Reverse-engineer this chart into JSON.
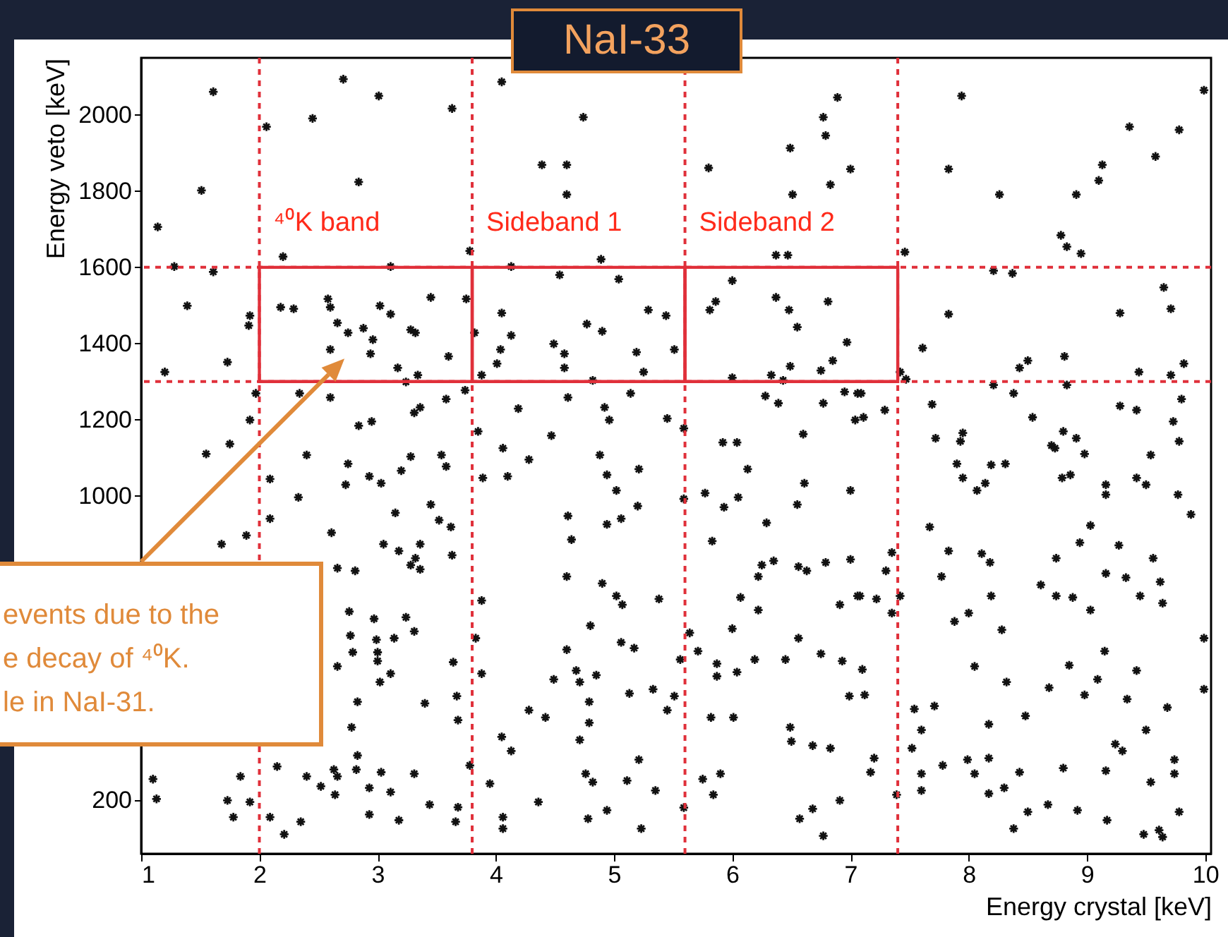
{
  "chart_data": {
    "type": "scatter",
    "title": "NaI-33",
    "xlabel": "Energy crystal [keV]",
    "ylabel": "Energy veto [keV]",
    "xlim": [
      1,
      10.05
    ],
    "ylim": [
      60,
      2150
    ],
    "xticks": [
      1,
      2,
      3,
      4,
      5,
      6,
      7,
      8,
      9,
      10
    ],
    "yticks": [
      200,
      1000,
      1200,
      1400,
      1600,
      1800,
      2000
    ],
    "marker": "cross",
    "ref_lines": [
      {
        "axis": "x",
        "value": 2,
        "color": "#e0303a",
        "line_style": "dashed"
      },
      {
        "axis": "x",
        "value": 3.8,
        "color": "#e0303a",
        "line_style": "dashed"
      },
      {
        "axis": "x",
        "value": 5.6,
        "color": "#e0303a",
        "line_style": "dashed"
      },
      {
        "axis": "x",
        "value": 7.4,
        "color": "#e0303a",
        "line_style": "dashed"
      },
      {
        "axis": "y",
        "value": 1300,
        "color": "#e0303a",
        "line_style": "dashed"
      },
      {
        "axis": "y",
        "value": 1600,
        "color": "#e0303a",
        "line_style": "dashed"
      }
    ],
    "annotations": [
      "⁴⁰K band",
      "Sideband 1",
      "Sideband 2",
      "events due to the\ne decay of ⁴⁰K.\nle in NaI-31."
    ],
    "series": [
      {
        "color": "#111111",
        "x": [
          1.61,
          2.71,
          3.01,
          3.63,
          2.45,
          2.06,
          1.51,
          2.84,
          1.14,
          2.2,
          3.78,
          1.28,
          1.61,
          3.11,
          1.39,
          1.92,
          1.91,
          2.18,
          2.29,
          2.58,
          2.6,
          2.66,
          2.75,
          2.88,
          2.96,
          2.94,
          3.02,
          3.11,
          3.28,
          3.32,
          3.45,
          3.75,
          2.6,
          3.6,
          3.17,
          3.24,
          3.34,
          3.82,
          1.73,
          1.2,
          1.97,
          2.6,
          2.34,
          3.36,
          3.31,
          3.58,
          3.74,
          3.88,
          1.92,
          2.84,
          2.95,
          1.75,
          3.85,
          1.55,
          2.4,
          2.09,
          2.75,
          2.73,
          2.93,
          3.03,
          3.2,
          3.28,
          3.54,
          3.58,
          3.89,
          2.33,
          2.09,
          3.45,
          3.15,
          3.52,
          3.62,
          2.61,
          1.89,
          1.68,
          3.05,
          3.18,
          3.36,
          3.32,
          3.28,
          3.36,
          3.63,
          2.66,
          2.81,
          3.88,
          2.76,
          2.97,
          3.24,
          3.31,
          2.77,
          2.99,
          3.0,
          3.14,
          2.79,
          3.0,
          3.11,
          3.02,
          3.64,
          3.83,
          3.88,
          2.66,
          2.83,
          3.4,
          3.67,
          3.68,
          2.78,
          2.83,
          2.15,
          1.84,
          1.1,
          2.4,
          2.52,
          2.63,
          2.66,
          2.64,
          2.82,
          2.93,
          3.03,
          3.11,
          3.31,
          3.78,
          3.95,
          1.13,
          1.73,
          1.92,
          1.78,
          2.09,
          2.21,
          2.35,
          2.93,
          3.18,
          3.44,
          3.68,
          3.66,
          4.05,
          4.74,
          4.39,
          4.6,
          4.6,
          5.8,
          6.49,
          6.77,
          6.89,
          6.79,
          7.0,
          6.83,
          6.51,
          4.13,
          4.89,
          4.54,
          5.04,
          4.05,
          5.29,
          5.44,
          4.77,
          4.9,
          4.13,
          4.04,
          4.01,
          4.49,
          4.58,
          4.58,
          5.19,
          5.51,
          5.25,
          4.82,
          4.61,
          4.19,
          4.92,
          4.96,
          5.14,
          4.47,
          5.45,
          5.59,
          6.37,
          6.47,
          6.0,
          5.86,
          5.81,
          6.37,
          6.48,
          6.55,
          6.81,
          6.97,
          6.85,
          6.75,
          6.49,
          6.33,
          6.43,
          6.0,
          6.28,
          6.39,
          6.77,
          6.95,
          7.06,
          7.04,
          6.6,
          5.92,
          6.04,
          7.94,
          9.99,
          9.36,
          9.78,
          9.58,
          9.13,
          9.1,
          7.83,
          8.26,
          8.91,
          8.78,
          8.83,
          8.95,
          7.46,
          8.21,
          8.37,
          9.65,
          9.28,
          9.71,
          7.83,
          7.61,
          8.43,
          8.5,
          8.81,
          9.44,
          9.82,
          9.71,
          7.42,
          7.47,
          8.21,
          8.83,
          8.38,
          7.69,
          8.54,
          9.28,
          9.42,
          9.8,
          9.73,
          9.78,
          7.72,
          7.95,
          7.93,
          8.8,
          8.7,
          8.91,
          7.29,
          7.09,
          7.11,
          7.9,
          7.95,
          8.07,
          8.14,
          8.19,
          8.31,
          8.73,
          8.98,
          8.79,
          8.86,
          9.16,
          9.16,
          9.42,
          9.5,
          9.54,
          9.77,
          9.88,
          7.67,
          9.03,
          8.94,
          9.27,
          7.83,
          8.11,
          8.18,
          8.74,
          9.56,
          7.35,
          7.3,
          7.77,
          9.16,
          9.33,
          9.62,
          8.61,
          8.74,
          8.88,
          9.03,
          8.19,
          9.45,
          9.64,
          7.08,
          7.22,
          7.42,
          7.35,
          7.88,
          8.0,
          8.28,
          9.99,
          9.15,
          8.05,
          8.85,
          9.42,
          8.32,
          8.68,
          9.09,
          8.98,
          9.34,
          9.99,
          7.1,
          7.12,
          7.54,
          7.71,
          7.6,
          7.52,
          8.17,
          8.48,
          9.68,
          9.5,
          9.24,
          9.3,
          7.2,
          7.17,
          7.6,
          7.6,
          7.78,
          7.99,
          8.05,
          8.17,
          8.17,
          8.3,
          8.43,
          8.8,
          9.16,
          9.54,
          9.74,
          9.74,
          7.39,
          8.67,
          8.92,
          8.5,
          8.38,
          9.17,
          9.78,
          9.48,
          9.61,
          9.64,
          4.06,
          4.28,
          4.1,
          4.88,
          4.94,
          5.02,
          5.21,
          5.2,
          4.61,
          4.64,
          4.94,
          5.06,
          5.59,
          5.77,
          5.93,
          6.05,
          6.13,
          6.29,
          6.55,
          6.61,
          7.0,
          5.83,
          6.25,
          6.35,
          6.22,
          6.56,
          6.63,
          6.79,
          7.0,
          4.6,
          4.9,
          5.02,
          5.07,
          5.38,
          6.07,
          6.22,
          6.91,
          7.06,
          4.8,
          6.0,
          5.64,
          6.56,
          4.6,
          5.06,
          5.17,
          5.56,
          5.71,
          5.87,
          5.87,
          6.04,
          6.19,
          6.45,
          6.75,
          6.93,
          4.68,
          4.71,
          4.49,
          4.85,
          5.13,
          5.33,
          5.51,
          5.45,
          6.99,
          4.79,
          4.28,
          4.42,
          4.79,
          5.82,
          6.01,
          4.05,
          4.13,
          4.71,
          6.49,
          6.5,
          6.68,
          6.83,
          5.21,
          4.76,
          4.82,
          5.11,
          5.35,
          5.75,
          5.9,
          5.84,
          4.36,
          4.94,
          4.78,
          4.06,
          4.06,
          5.23,
          5.59,
          6.91,
          6.57,
          6.68,
          6.77
        ],
        "values": [
          2061,
          2094,
          2050,
          2017,
          1991,
          1969,
          1802,
          1824,
          1706,
          1628,
          1643,
          1602,
          1588,
          1602,
          1499,
          1473,
          1447,
          1495,
          1491,
          1517,
          1495,
          1454,
          1428,
          1440,
          1410,
          1373,
          1499,
          1477,
          1436,
          1428,
          1521,
          1517,
          1384,
          1366,
          1336,
          1299,
          1317,
          1428,
          1351,
          1325,
          1269,
          1258,
          1269,
          1232,
          1218,
          1254,
          1277,
          1317,
          1199,
          1184,
          1195,
          1136,
          1169,
          1110,
          1107,
          1044,
          1084,
          1029,
          1051,
          1033,
          1066,
          1103,
          1107,
          1077,
          1047,
          996,
          940,
          977,
          955,
          936,
          918,
          903,
          896,
          873,
          873,
          855,
          873,
          836,
          818,
          807,
          844,
          810,
          803,
          725,
          696,
          677,
          681,
          644,
          633,
          622,
          589,
          626,
          589,
          566,
          533,
          511,
          563,
          626,
          533,
          552,
          459,
          455,
          474,
          411,
          392,
          318,
          289,
          263,
          256,
          263,
          237,
          281,
          263,
          215,
          281,
          233,
          274,
          222,
          270,
          292,
          244,
          204,
          200,
          196,
          156,
          156,
          111,
          144,
          163,
          148,
          189,
          182,
          144,
          2087,
          1994,
          1869,
          1869,
          1791,
          1861,
          1913,
          1994,
          2046,
          1946,
          1858,
          1817,
          1791,
          1602,
          1621,
          1580,
          1569,
          1480,
          1488,
          1473,
          1451,
          1432,
          1421,
          1384,
          1347,
          1399,
          1373,
          1336,
          1377,
          1384,
          1325,
          1303,
          1258,
          1229,
          1232,
          1199,
          1269,
          1158,
          1203,
          1177,
          1632,
          1632,
          1565,
          1510,
          1488,
          1521,
          1488,
          1443,
          1510,
          1403,
          1355,
          1329,
          1340,
          1317,
          1303,
          1310,
          1262,
          1243,
          1243,
          1273,
          1269,
          1199,
          1162,
          1140,
          1140,
          2050,
          2065,
          1969,
          1961,
          1891,
          1869,
          1828,
          1858,
          1791,
          1791,
          1684,
          1654,
          1636,
          1640,
          1591,
          1584,
          1547,
          1480,
          1491,
          1477,
          1388,
          1336,
          1355,
          1366,
          1325,
          1347,
          1317,
          1325,
          1306,
          1291,
          1291,
          1269,
          1240,
          1206,
          1236,
          1225,
          1254,
          1195,
          1143,
          1151,
          1165,
          1143,
          1169,
          1132,
          1151,
          1225,
          1269,
          1206,
          1084,
          1047,
          1014,
          1033,
          1081,
          1084,
          1125,
          1110,
          1047,
          1055,
          1029,
          1003,
          1047,
          1029,
          1107,
          1003,
          951,
          918,
          922,
          877,
          870,
          855,
          848,
          825,
          836,
          836,
          851,
          803,
          788,
          796,
          785,
          774,
          766,
          737,
          733,
          700,
          737,
          737,
          718,
          737,
          729,
          737,
          692,
          670,
          692,
          648,
          626,
          592,
          552,
          555,
          541,
          511,
          496,
          518,
          477,
          466,
          492,
          544,
          477,
          440,
          448,
          385,
          337,
          400,
          422,
          444,
          385,
          348,
          330,
          311,
          274,
          270,
          226,
          292,
          307,
          270,
          311,
          218,
          233,
          274,
          285,
          278,
          248,
          307,
          270,
          215,
          189,
          174,
          170,
          126,
          148,
          170,
          111,
          122,
          104,
          1125,
          1095,
          1051,
          1107,
          1055,
          1014,
          1070,
          973,
          947,
          885,
          925,
          940,
          992,
          1007,
          970,
          996,
          1070,
          929,
          977,
          1033,
          1014,
          881,
          818,
          829,
          788,
          814,
          803,
          825,
          833,
          788,
          770,
          737,
          714,
          729,
          733,
          700,
          714,
          737,
          659,
          651,
          640,
          626,
          596,
          615,
          600,
          570,
          592,
          559,
          526,
          537,
          570,
          570,
          585,
          566,
          541,
          511,
          518,
          529,
          481,
          492,
          474,
          437,
          474,
          459,
          437,
          418,
          404,
          418,
          418,
          367,
          330,
          359,
          392,
          355,
          344,
          337,
          307,
          270,
          248,
          252,
          226,
          256,
          270,
          215,
          196,
          174,
          152,
          156,
          126,
          126,
          181,
          200,
          152,
          178,
          107
        ]
      }
    ]
  }
}
